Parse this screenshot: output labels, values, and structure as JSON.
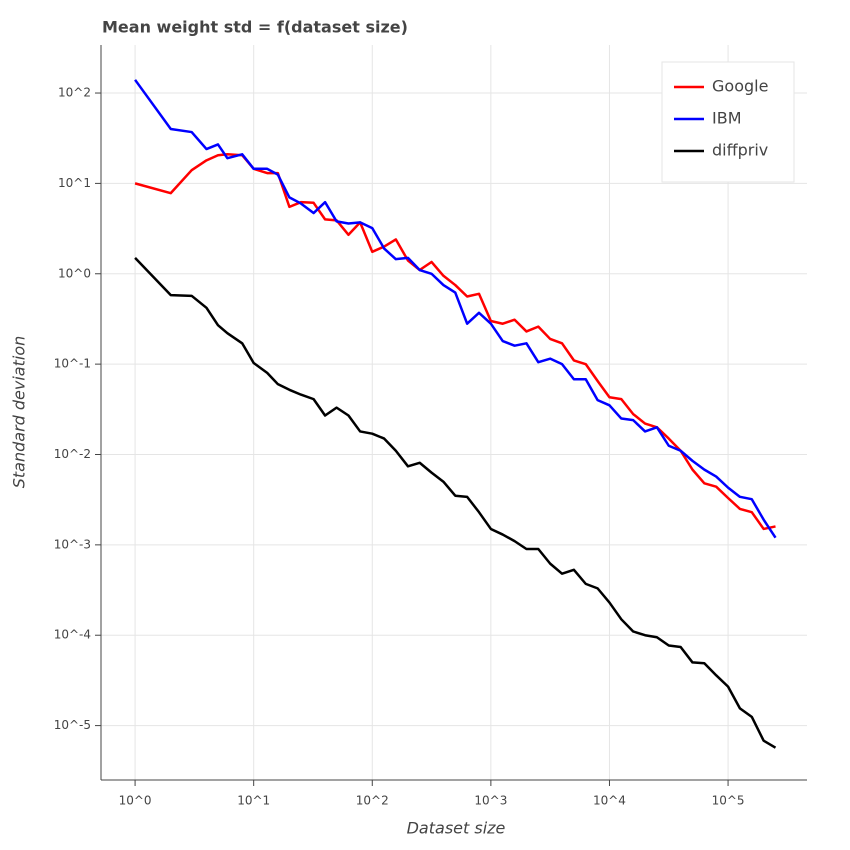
{
  "chart_data": {
    "type": "line",
    "title": "Mean weight std = f(dataset size)",
    "x_label": "Dataset size",
    "y_label": "Standard deviation",
    "log_x": true,
    "log_y": true,
    "grid": true,
    "legend_location": "top_right",
    "xlim": [
      0.516,
      463000
    ],
    "ylim": [
      2.5e-06,
      340
    ],
    "xticks": [
      {
        "value": 1,
        "label": "10^0"
      },
      {
        "value": 10,
        "label": "10^1"
      },
      {
        "value": 100,
        "label": "10^2"
      },
      {
        "value": 1000,
        "label": "10^3"
      },
      {
        "value": 10000,
        "label": "10^4"
      },
      {
        "value": 100000,
        "label": "10^5"
      }
    ],
    "yticks": [
      {
        "value": 1e-05,
        "label": "10^-5"
      },
      {
        "value": 0.0001,
        "label": "10^-4"
      },
      {
        "value": 0.001,
        "label": "10^-3"
      },
      {
        "value": 0.01,
        "label": "10^-2"
      },
      {
        "value": 0.1,
        "label": "10^-1"
      },
      {
        "value": 1,
        "label": "10^0"
      },
      {
        "value": 10,
        "label": "10^1"
      },
      {
        "value": 100,
        "label": "10^2"
      }
    ],
    "x": [
      1,
      2,
      3,
      4,
      5,
      6,
      8,
      10,
      13,
      16,
      20,
      25,
      32,
      40,
      50,
      63,
      79,
      100,
      126,
      158,
      200,
      251,
      316,
      398,
      501,
      631,
      794,
      1000,
      1259,
      1585,
      1995,
      2512,
      3162,
      3981,
      5012,
      6310,
      7943,
      10000,
      12589,
      15849,
      19953,
      25119,
      31623,
      39811,
      50119,
      63096,
      79433,
      100000,
      125893,
      158489,
      199526,
      251189
    ],
    "series": [
      {
        "name": "Google",
        "color": "#ff0000",
        "values": [
          10,
          7.8,
          14,
          18,
          20.5,
          21,
          20.5,
          14.5,
          13,
          13,
          5.5,
          6.2,
          6.1,
          4.0,
          3.9,
          2.7,
          3.7,
          1.75,
          2.0,
          2.4,
          1.4,
          1.1,
          1.35,
          0.95,
          0.75,
          0.56,
          0.6,
          0.3,
          0.28,
          0.31,
          0.23,
          0.26,
          0.19,
          0.17,
          0.11,
          0.1,
          0.065,
          0.043,
          0.041,
          0.028,
          0.022,
          0.02,
          0.015,
          0.011,
          0.0068,
          0.0048,
          0.0044,
          0.0033,
          0.0025,
          0.0023,
          0.0015,
          0.0016
        ]
      },
      {
        "name": "IBM",
        "color": "#0000ff",
        "values": [
          140,
          40,
          37,
          24,
          27,
          19,
          21,
          14.5,
          14.5,
          12.5,
          7,
          6,
          4.7,
          6.2,
          3.8,
          3.6,
          3.7,
          3.2,
          1.9,
          1.45,
          1.5,
          1.1,
          1.0,
          0.75,
          0.62,
          0.28,
          0.37,
          0.28,
          0.18,
          0.16,
          0.17,
          0.105,
          0.115,
          0.1,
          0.068,
          0.068,
          0.04,
          0.035,
          0.025,
          0.024,
          0.018,
          0.02,
          0.0125,
          0.011,
          0.0085,
          0.0068,
          0.0057,
          0.0043,
          0.0034,
          0.0032,
          0.0019,
          0.0012
        ]
      },
      {
        "name": "diffpriv",
        "color": "#000000",
        "values": [
          1.5,
          0.58,
          0.57,
          0.42,
          0.27,
          0.22,
          0.17,
          0.103,
          0.08,
          0.06,
          0.052,
          0.046,
          0.041,
          0.027,
          0.033,
          0.027,
          0.018,
          0.017,
          0.015,
          0.011,
          0.0074,
          0.0081,
          0.0063,
          0.005,
          0.0035,
          0.0034,
          0.0023,
          0.0015,
          0.0013,
          0.0011,
          0.0009,
          0.0009,
          0.00062,
          0.00048,
          0.00053,
          0.00037,
          0.00033,
          0.00023,
          0.00015,
          0.00011,
          0.0001,
          9.5e-05,
          7.7e-05,
          7.4e-05,
          5e-05,
          4.9e-05,
          3.6e-05,
          2.7e-05,
          1.55e-05,
          1.25e-05,
          6.8e-06,
          5.7e-06
        ]
      }
    ]
  }
}
